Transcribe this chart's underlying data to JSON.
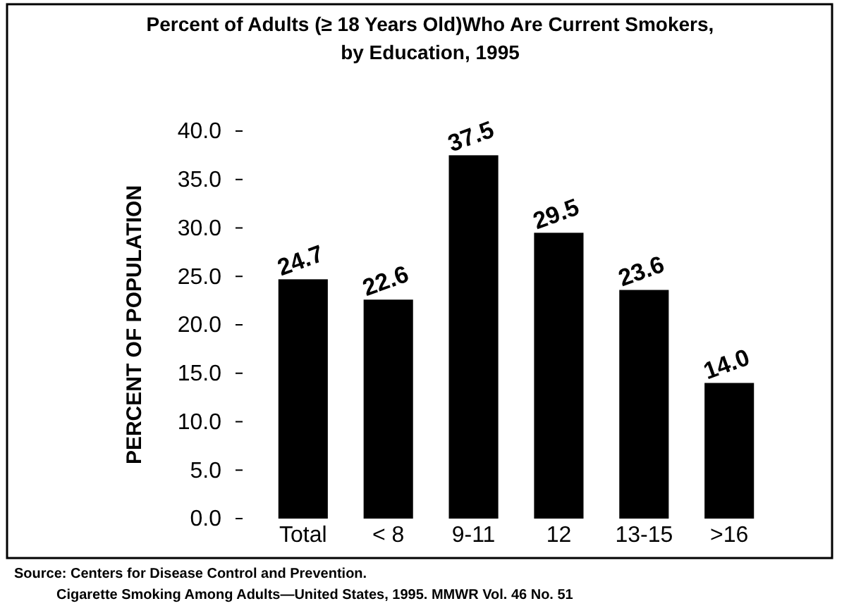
{
  "chart_data": {
    "type": "bar",
    "title": "Percent of Adults (≥ 18 Years Old)Who Are Current Smokers,",
    "subtitle": "by Education, 1995",
    "ylabel": "PERCENT OF POPULATION",
    "categories": [
      "Total",
      "< 8",
      "9-11",
      "12",
      "13-15",
      ">16"
    ],
    "values": [
      24.7,
      22.6,
      37.5,
      29.5,
      23.6,
      14.0
    ],
    "value_labels": [
      "24.7",
      "22.6",
      "37.5",
      "29.5",
      "23.6",
      "14.0"
    ],
    "color": "#000000",
    "ylim": [
      0,
      40
    ],
    "yticks": [
      {
        "value": 0,
        "label": "0.0"
      },
      {
        "value": 5,
        "label": "5.0"
      },
      {
        "value": 10,
        "label": "10.0"
      },
      {
        "value": 15,
        "label": "15.0"
      },
      {
        "value": 20,
        "label": "20.0"
      },
      {
        "value": 25,
        "label": "25.0"
      },
      {
        "value": 30,
        "label": "30.0"
      },
      {
        "value": 35,
        "label": "35.0"
      },
      {
        "value": 40,
        "label": "40.0"
      }
    ],
    "grid": false,
    "annotations": [
      "Source: Centers for Disease Control and Prevention.",
      "Cigarette Smoking Among Adults—United States, 1995. MMWR Vol. 46 No. 51"
    ]
  }
}
